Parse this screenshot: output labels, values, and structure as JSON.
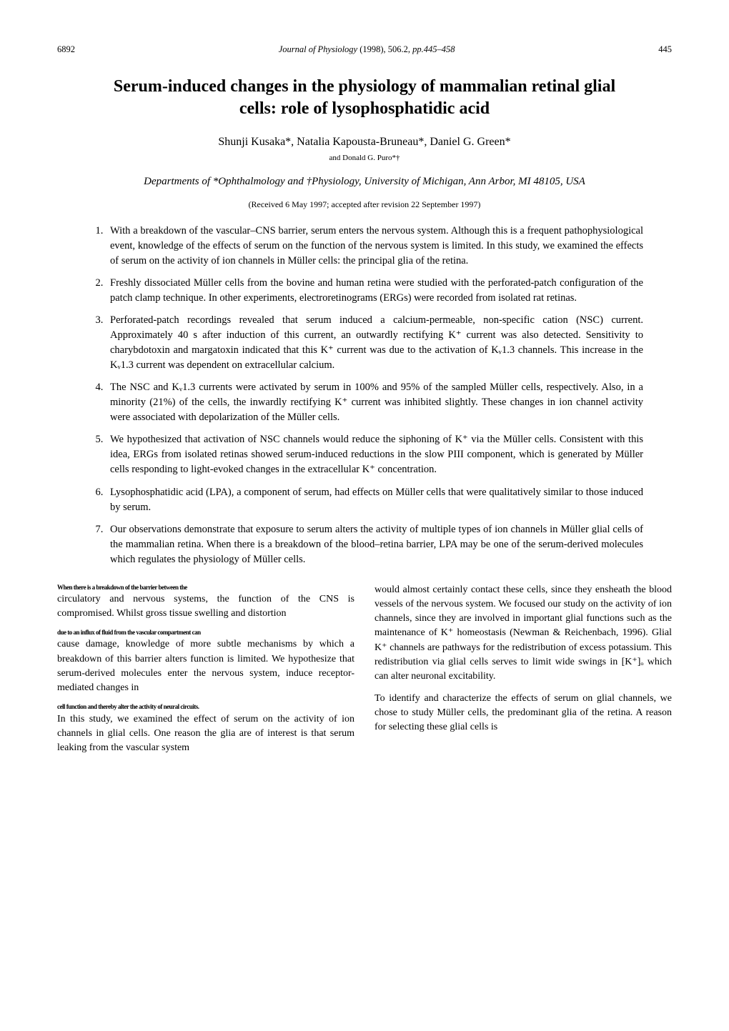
{
  "header": {
    "left_number": "6892",
    "journal": "Journal of Physiology",
    "year_vol": "(1998), 506.2",
    "pages": "pp.445–458",
    "right_number": "445"
  },
  "title": "Serum-induced changes in the physiology of mammalian retinal glial cells: role of lysophosphatidic acid",
  "authors": "Shunji Kusaka*, Natalia Kapousta-Bruneau*, Daniel G. Green*",
  "authors_sub": "and Donald G. Puro*†",
  "affiliation": "Departments of *Ophthalmology and †Physiology, University of Michigan, Ann Arbor, MI 48105, USA",
  "received": "(Received 6 May 1997; accepted after revision 22 September 1997)",
  "points": [
    "With a breakdown of the vascular–CNS barrier, serum enters the nervous system. Although this is a frequent pathophysiological event, knowledge of the effects of serum on the function of the nervous system is limited. In this study, we examined the effects of serum on the activity of ion channels in Müller cells: the principal glia of the retina.",
    "Freshly dissociated Müller cells from the bovine and human retina were studied with the perforated-patch configuration of the patch clamp technique. In other experiments, electroretinograms (ERGs) were recorded from isolated rat retinas.",
    "Perforated-patch recordings revealed that serum induced a calcium-permeable, non-specific cation (NSC) current. Approximately 40 s after induction of this current, an outwardly rectifying K⁺ current was also detected. Sensitivity to charybdotoxin and margatoxin indicated that this K⁺ current was due to the activation of Kᵥ1.3 channels. This increase in the Kᵥ1.3 current was dependent on extracellular calcium.",
    "The NSC and Kᵥ1.3 currents were activated by serum in 100% and 95% of the sampled Müller cells, respectively. Also, in a minority (21%) of the cells, the inwardly rectifying K⁺ current was inhibited slightly. These changes in ion channel activity were associated with depolarization of the Müller cells.",
    "We hypothesized that activation of NSC channels would reduce the siphoning of K⁺ via the Müller cells. Consistent with this idea, ERGs from isolated retinas showed serum-induced reductions in the slow PIII component, which is generated by Müller cells responding to light-evoked changes in the extracellular K⁺ concentration.",
    "Lysophosphatidic acid (LPA), a component of serum, had effects on Müller cells that were qualitatively similar to those induced by serum.",
    "Our observations demonstrate that exposure to serum alters the activity of multiple types of ion channels in Müller glial cells of the mammalian retina. When there is a breakdown of the blood–retina barrier, LPA may be one of the serum-derived molecules which regulates the physiology of Müller cells."
  ],
  "body": {
    "left": {
      "g1": "When there is a breakdown of the barrier between the",
      "p1": "circulatory and nervous systems, the function of the CNS is compromised. Whilst gross tissue swelling and distortion",
      "g2": "due to an influx of fluid from the vascular compartment can",
      "p2": "cause damage, knowledge of more subtle mechanisms by which a breakdown of this barrier alters function is limited. We hypothesize that serum-derived molecules enter the nervous system, induce receptor-mediated changes in",
      "g3": "cell function and thereby alter the activity of neural circuits.",
      "p3": "In this study, we examined the effect of serum on the activity of ion channels in glial cells. One reason the glia are of interest is that serum leaking from the vascular system"
    },
    "right": {
      "p1": "would almost certainly contact these cells, since they ensheath the blood vessels of the nervous system. We focused our study on the activity of ion channels, since they are involved in important glial functions such as the maintenance of K⁺ homeostasis (Newman & Reichenbach, 1996). Glial K⁺ channels are pathways for the redistribution of excess potassium. This redistribution via glial cells serves to limit wide swings in [K⁺]ₒ which can alter neuronal excitability.",
      "p2": "To identify and characterize the effects of serum on glial channels, we chose to study Müller cells, the predominant glia of the retina. A reason for selecting these glial cells is"
    }
  }
}
